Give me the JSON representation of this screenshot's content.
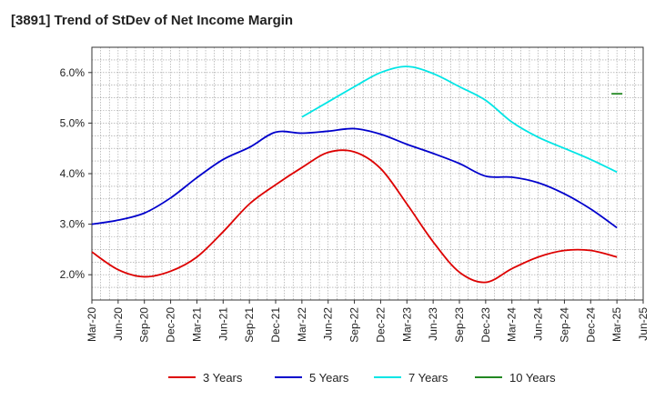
{
  "chart_data": {
    "type": "line",
    "title": "[3891]  Trend of StDev of Net Income Margin",
    "xlabel": "",
    "ylabel": "",
    "ylim": [
      1.5,
      6.5
    ],
    "x_ticks": [
      "Mar-20",
      "Jun-20",
      "Sep-20",
      "Dec-20",
      "Mar-21",
      "Jun-21",
      "Sep-21",
      "Dec-21",
      "Mar-22",
      "Jun-22",
      "Sep-22",
      "Dec-22",
      "Mar-23",
      "Jun-23",
      "Sep-23",
      "Dec-23",
      "Mar-24",
      "Jun-24",
      "Sep-24",
      "Dec-24",
      "Mar-25",
      "Jun-25"
    ],
    "y_ticks": [
      "2.0%",
      "3.0%",
      "4.0%",
      "5.0%",
      "6.0%"
    ],
    "y_tick_values": [
      2.0,
      3.0,
      4.0,
      5.0,
      6.0
    ],
    "grid": true,
    "legend_position": "bottom",
    "series": [
      {
        "name": "3 Years",
        "color": "#dd0000",
        "values": [
          2.45,
          2.1,
          1.96,
          2.07,
          2.35,
          2.85,
          3.4,
          3.78,
          4.12,
          4.42,
          4.43,
          4.1,
          3.4,
          2.65,
          2.05,
          1.85,
          2.12,
          2.35,
          2.48,
          2.48,
          2.35,
          null
        ]
      },
      {
        "name": "5 Years",
        "color": "#0000cc",
        "values": [
          3.0,
          3.08,
          3.22,
          3.52,
          3.92,
          4.28,
          4.52,
          4.82,
          4.8,
          4.84,
          4.89,
          4.78,
          4.58,
          4.4,
          4.2,
          3.95,
          3.93,
          3.82,
          3.6,
          3.3,
          2.93,
          null
        ]
      },
      {
        "name": "7 Years",
        "color": "#00e5e5",
        "values": [
          null,
          null,
          null,
          null,
          null,
          null,
          null,
          null,
          5.12,
          5.42,
          5.72,
          6.0,
          6.12,
          5.98,
          5.72,
          5.45,
          5.02,
          4.72,
          4.5,
          4.28,
          4.03,
          null
        ]
      },
      {
        "name": "10 Years",
        "color": "#228822",
        "values": [
          null,
          null,
          null,
          null,
          null,
          null,
          null,
          null,
          null,
          null,
          null,
          null,
          null,
          null,
          null,
          null,
          null,
          null,
          null,
          null,
          5.58,
          null
        ]
      }
    ]
  }
}
